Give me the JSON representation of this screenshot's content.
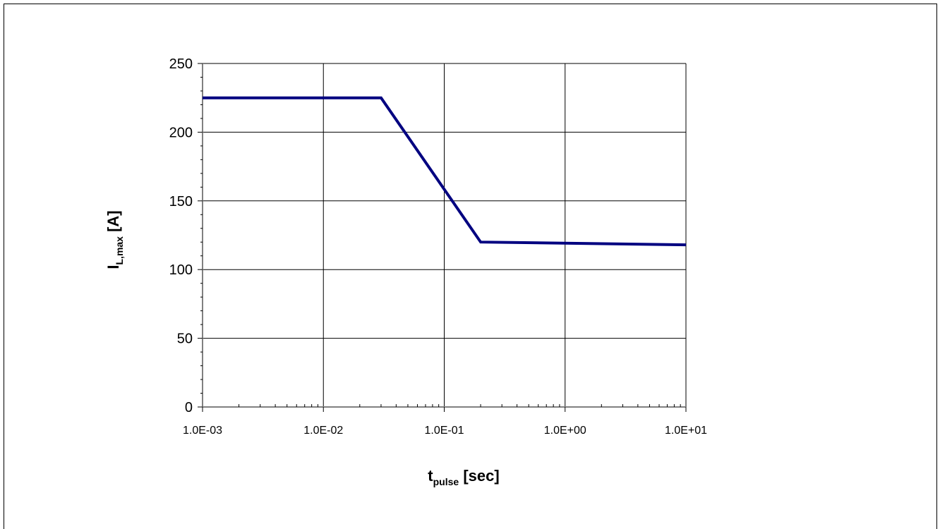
{
  "chart_data": {
    "type": "line",
    "x_scale": "log",
    "xlim": [
      0.001,
      10
    ],
    "ylim": [
      0,
      250
    ],
    "y_ticks": [
      0,
      50,
      100,
      150,
      200,
      250
    ],
    "y_tick_labels": [
      "0",
      "50",
      "100",
      "150",
      "200",
      "250"
    ],
    "x_ticks": [
      0.001,
      0.01,
      0.1,
      1,
      10
    ],
    "x_tick_labels": [
      "1.0E-03",
      "1.0E-02",
      "1.0E-01",
      "1.0E+00",
      "1.0E+01"
    ],
    "xlabel": {
      "main": "t",
      "sub": "pulse",
      "rest": " [sec]"
    },
    "ylabel": {
      "main": "I",
      "sub": "L,max",
      "rest": " [A]"
    },
    "grid": true,
    "line_color": "#000080",
    "series": [
      {
        "x": [
          0.001,
          0.03,
          0.2,
          10
        ],
        "y": [
          225,
          225,
          120,
          118
        ]
      }
    ]
  }
}
